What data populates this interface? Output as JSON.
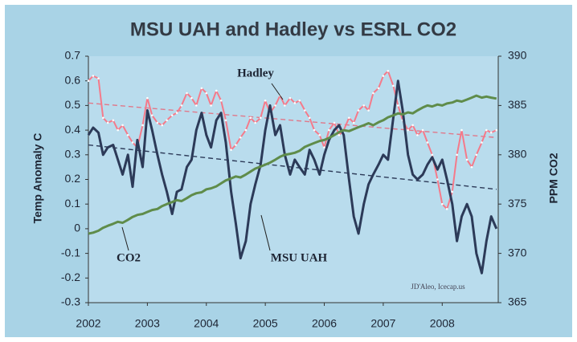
{
  "chart_data": {
    "type": "line",
    "title": "MSU UAH and Hadley vs ESRL CO2",
    "ylabel": "Temp Anomaly C",
    "y2label": "PPM CO2",
    "credit": "JD'Aleo, Icecap.us",
    "xlim": [
      2002,
      2008.95
    ],
    "xticks": [
      2002,
      2003,
      2004,
      2005,
      2006,
      2007,
      2008
    ],
    "ylim": [
      -0.3,
      0.7
    ],
    "yticks": [
      -0.3,
      -0.2,
      -0.1,
      0,
      0.1,
      0.2,
      0.3,
      0.4,
      0.5,
      0.6,
      0.7
    ],
    "y2lim": [
      365,
      390
    ],
    "y2ticks": [
      365,
      370,
      375,
      380,
      385,
      390
    ],
    "grid": false,
    "x": [
      2002.0,
      2002.08,
      2002.17,
      2002.25,
      2002.33,
      2002.42,
      2002.5,
      2002.58,
      2002.67,
      2002.75,
      2002.83,
      2002.92,
      2003.0,
      2003.08,
      2003.17,
      2003.25,
      2003.33,
      2003.42,
      2003.5,
      2003.58,
      2003.67,
      2003.75,
      2003.83,
      2003.92,
      2004.0,
      2004.08,
      2004.17,
      2004.25,
      2004.33,
      2004.42,
      2004.5,
      2004.58,
      2004.67,
      2004.75,
      2004.83,
      2004.92,
      2005.0,
      2005.08,
      2005.17,
      2005.25,
      2005.33,
      2005.42,
      2005.5,
      2005.58,
      2005.67,
      2005.75,
      2005.83,
      2005.92,
      2006.0,
      2006.08,
      2006.17,
      2006.25,
      2006.33,
      2006.42,
      2006.5,
      2006.58,
      2006.67,
      2006.75,
      2006.83,
      2006.92,
      2007.0,
      2007.08,
      2007.17,
      2007.25,
      2007.33,
      2007.42,
      2007.5,
      2007.58,
      2007.67,
      2007.75,
      2007.83,
      2007.92,
      2008.0,
      2008.08,
      2008.17,
      2008.25,
      2008.33,
      2008.42,
      2008.5,
      2008.58,
      2008.67,
      2008.75,
      2008.83,
      2008.92
    ],
    "series": [
      {
        "name": "Hadley",
        "color": "#f57a8a",
        "axis": "y",
        "values": [
          0.6,
          0.62,
          0.61,
          0.45,
          0.43,
          0.44,
          0.4,
          0.42,
          0.38,
          0.35,
          0.33,
          0.42,
          0.53,
          0.46,
          0.43,
          0.42,
          0.44,
          0.46,
          0.47,
          0.5,
          0.55,
          0.53,
          0.5,
          0.57,
          0.55,
          0.5,
          0.56,
          0.52,
          0.44,
          0.32,
          0.34,
          0.37,
          0.4,
          0.45,
          0.43,
          0.45,
          0.52,
          0.47,
          0.5,
          0.54,
          0.5,
          0.53,
          0.51,
          0.52,
          0.48,
          0.45,
          0.4,
          0.38,
          0.33,
          0.4,
          0.43,
          0.38,
          0.4,
          0.45,
          0.43,
          0.48,
          0.5,
          0.48,
          0.55,
          0.57,
          0.62,
          0.64,
          0.58,
          0.5,
          0.44,
          0.4,
          0.42,
          0.38,
          0.4,
          0.35,
          0.3,
          0.2,
          0.1,
          0.08,
          0.15,
          0.3,
          0.4,
          0.28,
          0.25,
          0.3,
          0.35,
          0.4,
          0.39,
          0.4
        ]
      },
      {
        "name": "MSU UAH",
        "color": "#2c3a58",
        "axis": "y",
        "values": [
          0.38,
          0.41,
          0.39,
          0.3,
          0.33,
          0.34,
          0.28,
          0.22,
          0.3,
          0.17,
          0.36,
          0.25,
          0.48,
          0.4,
          0.3,
          0.22,
          0.15,
          0.06,
          0.15,
          0.16,
          0.25,
          0.28,
          0.4,
          0.47,
          0.38,
          0.33,
          0.44,
          0.47,
          0.35,
          0.15,
          0.02,
          -0.12,
          -0.05,
          0.1,
          0.18,
          0.26,
          0.4,
          0.5,
          0.38,
          0.42,
          0.3,
          0.22,
          0.28,
          0.25,
          0.22,
          0.32,
          0.28,
          0.22,
          0.3,
          0.36,
          0.4,
          0.42,
          0.38,
          0.2,
          0.05,
          -0.02,
          0.1,
          0.18,
          0.22,
          0.26,
          0.3,
          0.28,
          0.45,
          0.6,
          0.48,
          0.3,
          0.22,
          0.2,
          0.22,
          0.26,
          0.29,
          0.24,
          0.28,
          0.2,
          0.1,
          -0.05,
          0.05,
          0.1,
          0.05,
          -0.1,
          -0.18,
          -0.05,
          0.05,
          0.0
        ]
      },
      {
        "name": "CO2",
        "color": "#5f8c4a",
        "axis": "y2",
        "values": [
          372.0,
          372.1,
          372.3,
          372.6,
          372.8,
          373.0,
          373.2,
          373.1,
          373.4,
          373.7,
          373.9,
          374.0,
          374.2,
          374.4,
          374.5,
          374.8,
          375.0,
          375.2,
          375.4,
          375.3,
          375.6,
          375.9,
          376.1,
          376.2,
          376.5,
          376.6,
          376.8,
          377.1,
          377.4,
          377.6,
          377.8,
          377.7,
          378.0,
          378.3,
          378.6,
          378.8,
          379.0,
          379.2,
          379.5,
          379.8,
          380.0,
          380.1,
          380.2,
          380.4,
          380.8,
          381.0,
          381.2,
          381.4,
          381.5,
          381.7,
          382.0,
          382.3,
          382.5,
          382.4,
          382.6,
          382.8,
          383.0,
          383.2,
          383.0,
          383.3,
          383.5,
          383.8,
          384.0,
          384.2,
          384.1,
          384.3,
          384.2,
          384.5,
          384.8,
          385.0,
          384.9,
          385.1,
          385.0,
          385.2,
          385.3,
          385.5,
          385.4,
          385.6,
          385.8,
          386.0,
          385.8,
          385.9,
          385.8,
          385.7
        ]
      }
    ],
    "trend_lines": [
      {
        "color": "#e0788a",
        "x": [
          2002,
          2008.92
        ],
        "values": [
          0.51,
          0.37
        ]
      },
      {
        "color": "#2c3a58",
        "x": [
          2002,
          2008.92
        ],
        "values": [
          0.34,
          0.16
        ]
      }
    ]
  }
}
